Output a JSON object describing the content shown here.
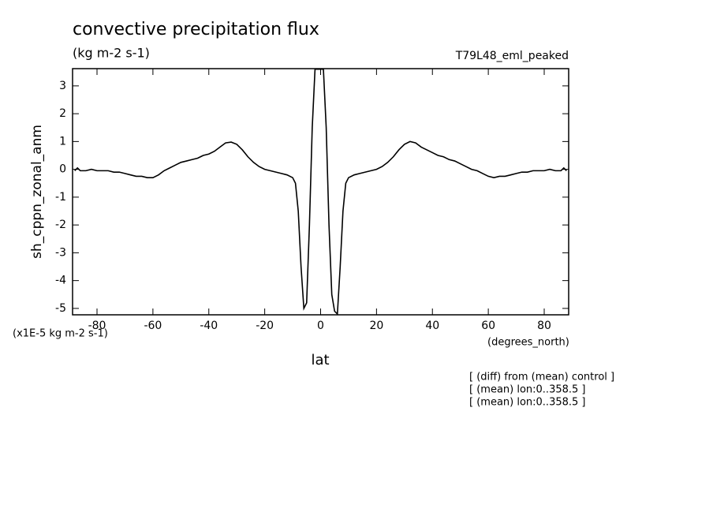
{
  "chart_data": {
    "type": "line",
    "title": "convective precipitation flux",
    "subtitle": "(kg m-2 s-1)",
    "run_label": "T79L48_eml_peaked",
    "y_label": "sh_cppn_zonal_anm",
    "scale_label": "(x1E-5 kg m-2 s-1)",
    "x_units": "(degrees_north)",
    "x_label": "lat",
    "notes": [
      "[ (diff) from (mean) control ]",
      "[ (mean) lon:0..358.5 ]",
      "[ (mean) lon:0..358.5 ]"
    ],
    "xlim": [
      -88.75,
      88.75
    ],
    "ylim": [
      -5.23,
      3.62
    ],
    "xticks": [
      -80,
      -60,
      -40,
      -20,
      0,
      20,
      40,
      60,
      80
    ],
    "yticks": [
      3,
      2,
      1,
      0,
      -1,
      -2,
      -3,
      -4,
      -5
    ],
    "series": [
      {
        "color": "#000000",
        "x": [
          -88,
          -87,
          -86,
          -84,
          -82,
          -80,
          -78,
          -76,
          -74,
          -72,
          -70,
          -68,
          -66,
          -64,
          -62,
          -60,
          -58,
          -56,
          -54,
          -52,
          -50,
          -48,
          -46,
          -44,
          -42,
          -40,
          -38,
          -36,
          -34,
          -32,
          -30,
          -28,
          -26,
          -24,
          -22,
          -20,
          -18,
          -16,
          -14,
          -12,
          -10,
          -9,
          -8,
          -7,
          -6,
          -5,
          -4,
          -3,
          -2,
          -1,
          0,
          1,
          2,
          3,
          4,
          5,
          6,
          7,
          8,
          9,
          10,
          12,
          14,
          16,
          18,
          20,
          22,
          24,
          26,
          28,
          30,
          32,
          34,
          36,
          38,
          40,
          42,
          44,
          46,
          48,
          50,
          52,
          54,
          56,
          58,
          60,
          62,
          64,
          66,
          68,
          70,
          72,
          74,
          76,
          78,
          80,
          82,
          84,
          86,
          87,
          88
        ],
        "values": [
          -0.05,
          0.05,
          -0.05,
          -0.05,
          0.0,
          -0.05,
          -0.05,
          -0.05,
          -0.1,
          -0.1,
          -0.15,
          -0.2,
          -0.25,
          -0.25,
          -0.3,
          -0.3,
          -0.2,
          -0.05,
          0.05,
          0.15,
          0.25,
          0.3,
          0.35,
          0.4,
          0.5,
          0.55,
          0.65,
          0.8,
          0.95,
          0.98,
          0.9,
          0.7,
          0.45,
          0.25,
          0.1,
          0.0,
          -0.05,
          -0.1,
          -0.15,
          -0.2,
          -0.3,
          -0.5,
          -1.5,
          -3.5,
          -5.0,
          -4.8,
          -2.0,
          1.5,
          3.6,
          3.6,
          3.6,
          3.6,
          1.5,
          -2.0,
          -4.5,
          -5.1,
          -5.2,
          -3.5,
          -1.5,
          -0.5,
          -0.3,
          -0.2,
          -0.15,
          -0.1,
          -0.05,
          0.0,
          0.1,
          0.25,
          0.45,
          0.7,
          0.9,
          1.0,
          0.95,
          0.8,
          0.7,
          0.6,
          0.5,
          0.45,
          0.35,
          0.3,
          0.2,
          0.1,
          0.0,
          -0.05,
          -0.15,
          -0.25,
          -0.3,
          -0.25,
          -0.25,
          -0.2,
          -0.15,
          -0.1,
          -0.1,
          -0.05,
          -0.05,
          -0.05,
          0.0,
          -0.05,
          -0.05,
          0.05,
          -0.05
        ]
      }
    ]
  }
}
